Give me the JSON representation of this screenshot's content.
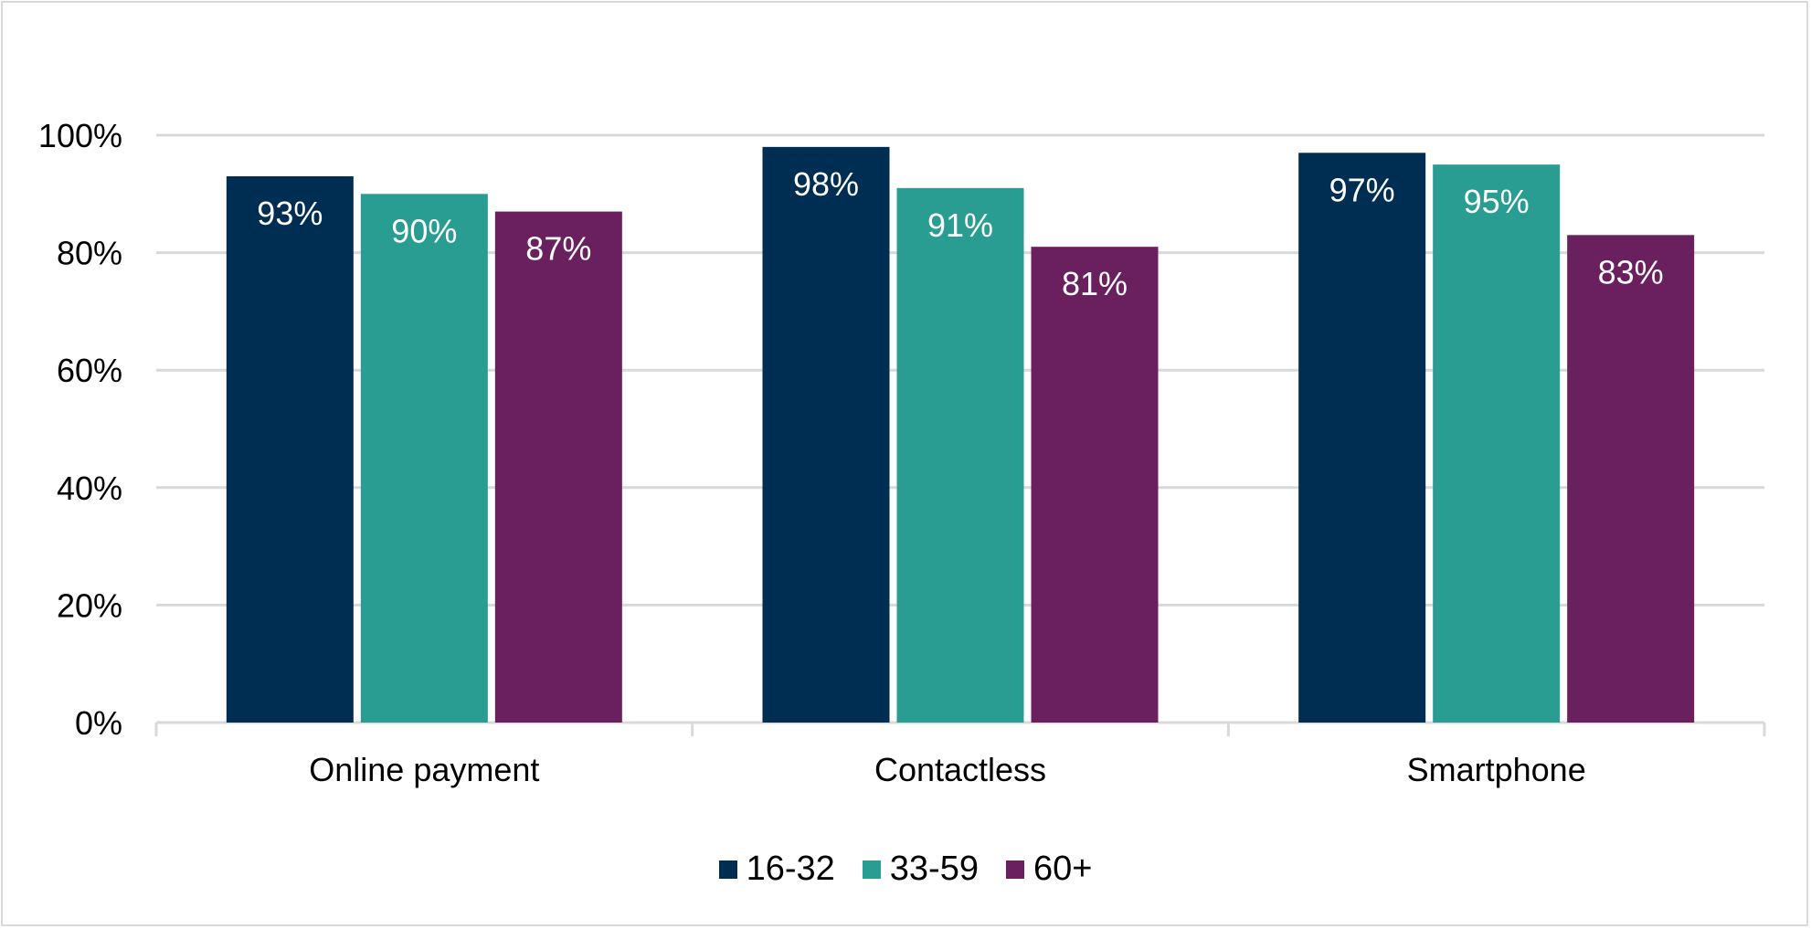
{
  "chart_data": {
    "type": "bar",
    "categories": [
      "Online payment",
      "Contactless",
      "Smartphone"
    ],
    "series": [
      {
        "name": "16-32",
        "values": [
          93,
          98,
          97
        ],
        "labels": [
          "93%",
          "98%",
          "97%"
        ],
        "color": "#002D52"
      },
      {
        "name": "33-59",
        "values": [
          90,
          91,
          95
        ],
        "labels": [
          "90%",
          "91%",
          "95%"
        ],
        "color": "#2A9D93"
      },
      {
        "name": "60+",
        "values": [
          87,
          81,
          83
        ],
        "labels": [
          "87%",
          "81%",
          "83%"
        ],
        "color": "#6A1F5F"
      }
    ],
    "ylim": [
      0,
      100
    ],
    "yticks": [
      0,
      20,
      40,
      60,
      80,
      100
    ],
    "ytick_labels": [
      "0%",
      "20%",
      "40%",
      "60%",
      "80%",
      "100%"
    ],
    "grid": true,
    "legend_position": "bottom",
    "title": "",
    "xlabel": "",
    "ylabel": ""
  }
}
